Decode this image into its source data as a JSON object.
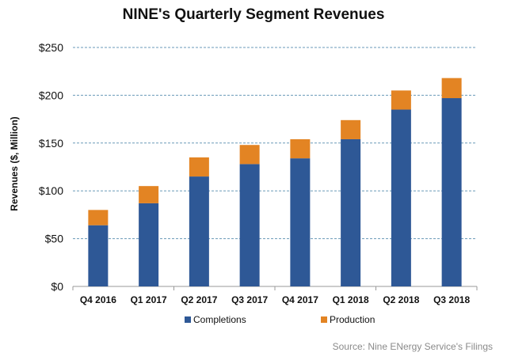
{
  "chart_data": {
    "type": "bar",
    "stacked": true,
    "title": "NINE's Quarterly Segment Revenues",
    "xlabel": "",
    "ylabel": "Revenues ($, Million)",
    "ylim": [
      0,
      250
    ],
    "yticks": [
      0,
      50,
      100,
      150,
      200,
      250
    ],
    "ytick_labels": [
      "$0",
      "$50",
      "$100",
      "$150",
      "$200",
      "$250"
    ],
    "grid": true,
    "legend_position": "bottom",
    "categories": [
      "Q4 2016",
      "Q1 2017",
      "Q2 2017",
      "Q3 2017",
      "Q4 2017",
      "Q1 2018",
      "Q2 2018",
      "Q3 2018"
    ],
    "series": [
      {
        "name": "Completions",
        "color": "#2e5896",
        "values": [
          64,
          87,
          115,
          128,
          134,
          154,
          185,
          197
        ]
      },
      {
        "name": "Production",
        "color": "#e38423",
        "values": [
          16,
          18,
          20,
          20,
          20,
          20,
          20,
          21
        ]
      }
    ],
    "source": "Source: Nine ENergy Service's Filings"
  }
}
